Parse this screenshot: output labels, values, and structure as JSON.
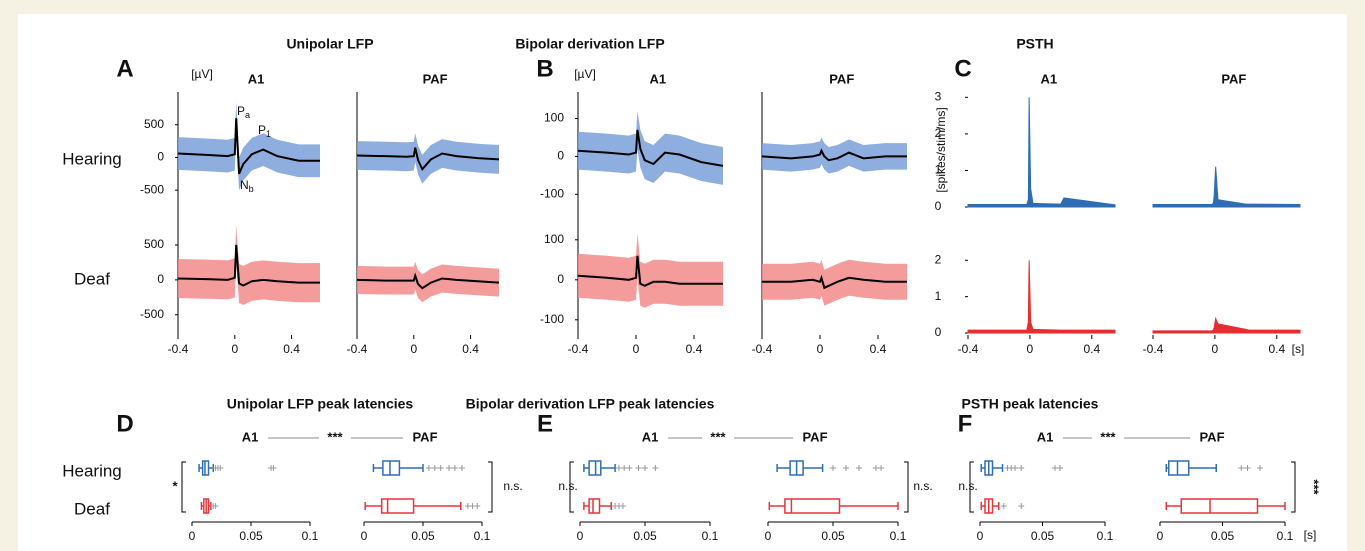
{
  "row_labels": [
    "Hearing",
    "Deaf"
  ],
  "mean_color": "#000000",
  "box_colors": [
    "#2f6db5",
    "#e8343a"
  ],
  "outlier_color": "#9a9a9a",
  "top_panels": [
    {
      "letter": "A",
      "title": "Unipolar LFP",
      "unit": "[µV]",
      "type": "band",
      "columns": [
        "A1",
        "PAF"
      ],
      "xlim": [
        -0.4,
        0.6
      ],
      "xticks": [
        -0.4,
        0,
        0.4
      ],
      "x": [
        -0.4,
        -0.2,
        -0.05,
        0,
        0.01,
        0.03,
        0.06,
        0.12,
        0.2,
        0.3,
        0.45,
        0.6
      ],
      "annotations": [
        {
          "text": "P",
          "sub": "a"
        },
        {
          "text": "P",
          "sub": "1"
        },
        {
          "text": "N",
          "sub": "b"
        }
      ],
      "rows": [
        {
          "color": "#7ba0db",
          "ylim": [
            -650,
            1000
          ],
          "yticks": [
            500,
            0,
            -500
          ],
          "spread": [
            250,
            220
          ],
          "mean": [
            [
              60,
              40,
              20,
              50,
              600,
              -250,
              -100,
              50,
              120,
              20,
              -50,
              -50
            ],
            [
              30,
              20,
              10,
              20,
              150,
              -40,
              -180,
              -30,
              60,
              20,
              -10,
              -30
            ]
          ]
        },
        {
          "color": "#f28b8b",
          "ylim": [
            -790,
            930
          ],
          "yticks": [
            500,
            0,
            -500
          ],
          "spread": [
            280,
            200
          ],
          "mean": [
            [
              20,
              10,
              0,
              30,
              500,
              -50,
              -80,
              -20,
              0,
              -20,
              -40,
              -40
            ],
            [
              0,
              -10,
              -10,
              -10,
              60,
              -60,
              -120,
              -40,
              20,
              0,
              -20,
              -40
            ]
          ]
        }
      ]
    },
    {
      "letter": "B",
      "title": "Bipolar derivation LFP",
      "unit": "[µV]",
      "type": "band",
      "columns": [
        "A1",
        "PAF"
      ],
      "xlim": [
        -0.4,
        0.6
      ],
      "xticks": [
        -0.4,
        0,
        0.4
      ],
      "x": [
        -0.4,
        -0.2,
        -0.05,
        0,
        0.01,
        0.03,
        0.06,
        0.12,
        0.2,
        0.3,
        0.45,
        0.6
      ],
      "rows": [
        {
          "color": "#7ba0db",
          "ylim": [
            -115,
            170
          ],
          "yticks": [
            100,
            0,
            -100
          ],
          "spread": [
            50,
            35
          ],
          "mean": [
            [
              15,
              10,
              5,
              10,
              70,
              20,
              -10,
              -20,
              10,
              5,
              -15,
              -25
            ],
            [
              0,
              -5,
              0,
              5,
              15,
              0,
              -10,
              -5,
              10,
              -5,
              0,
              0
            ]
          ]
        },
        {
          "color": "#f28b8b",
          "ylim": [
            -138,
            162
          ],
          "yticks": [
            100,
            0,
            -100
          ],
          "spread": [
            55,
            45
          ],
          "mean": [
            [
              10,
              5,
              0,
              5,
              60,
              -10,
              -15,
              -5,
              -5,
              -10,
              -10,
              -10
            ],
            [
              -5,
              -5,
              0,
              -5,
              5,
              -20,
              -15,
              -5,
              5,
              0,
              -5,
              -5
            ]
          ]
        }
      ]
    },
    {
      "letter": "C",
      "title": "PSTH",
      "unit": "[spikes/stim/ms]",
      "x_unit": "[s]",
      "type": "area",
      "columns": [
        "A1",
        "PAF"
      ],
      "xlim": [
        -0.4,
        0.55
      ],
      "xticks": [
        -0.4,
        0,
        0.4
      ],
      "x": [
        -0.4,
        -0.02,
        -0.01,
        -0.005,
        0.005,
        0.02,
        0.2,
        0.22,
        0.55
      ],
      "rows": [
        {
          "color": "#2e6db4",
          "ylim": [
            0,
            3.2
          ],
          "yticks": [
            3,
            2,
            1,
            0
          ],
          "mean": [
            [
              0.07,
              0.07,
              0.2,
              3,
              0.5,
              0.1,
              0.08,
              0.25,
              0.06
            ],
            [
              0.07,
              0.07,
              0.1,
              0.3,
              1.1,
              0.2,
              0.08,
              0.08,
              0.07
            ]
          ]
        },
        {
          "color": "#e52e2e",
          "ylim": [
            0,
            2.2
          ],
          "yticks": [
            2,
            1,
            0
          ],
          "mean": [
            [
              0.08,
              0.08,
              0.3,
              2,
              0.3,
              0.1,
              0.08,
              0.08,
              0.08
            ],
            [
              0.06,
              0.06,
              0.08,
              0.15,
              0.4,
              0.25,
              0.1,
              0.08,
              0.08
            ]
          ]
        }
      ]
    }
  ],
  "box_panels": [
    {
      "letter": "D",
      "title": "Unipolar LFP peak latencies",
      "columns": [
        "A1",
        "PAF"
      ],
      "comparison": "***",
      "left_sig": "*",
      "right_sig": "n.s.",
      "xlim": [
        0,
        0.1
      ],
      "xticks": [
        0,
        0.05,
        0.1
      ],
      "groups": [
        [
          {
            "min": 0.006,
            "q1": 0.009,
            "median": 0.011,
            "q3": 0.014,
            "max": 0.018,
            "outliers": [
              0.02,
              0.022,
              0.024,
              0.067,
              0.069
            ]
          },
          {
            "min": 0.008,
            "q1": 0.01,
            "median": 0.012,
            "q3": 0.014,
            "max": 0.016,
            "outliers": [
              0.018,
              0.02
            ]
          }
        ],
        [
          {
            "min": 0.008,
            "q1": 0.016,
            "median": 0.022,
            "q3": 0.03,
            "max": 0.05,
            "outliers": [
              0.055,
              0.06,
              0.065,
              0.072,
              0.077,
              0.083
            ]
          },
          {
            "min": 0.001,
            "q1": 0.015,
            "median": 0.02,
            "q3": 0.042,
            "max": 0.082,
            "outliers": [
              0.088,
              0.092,
              0.096
            ]
          }
        ]
      ]
    },
    {
      "letter": "E",
      "title": "Bipolar derivation LFP peak latencies",
      "columns": [
        "A1",
        "PAF"
      ],
      "comparison": "***",
      "left_sig": "n.s.",
      "right_sig": "n.s.",
      "xlim": [
        0,
        0.1
      ],
      "xticks": [
        0,
        0.05,
        0.1
      ],
      "groups": [
        [
          {
            "min": 0.003,
            "q1": 0.007,
            "median": 0.012,
            "q3": 0.016,
            "max": 0.027,
            "outliers": [
              0.03,
              0.034,
              0.038,
              0.045,
              0.05,
              0.058
            ]
          },
          {
            "min": 0.003,
            "q1": 0.007,
            "median": 0.01,
            "q3": 0.015,
            "max": 0.024,
            "outliers": [
              0.027,
              0.03,
              0.033
            ]
          }
        ],
        [
          {
            "min": 0.007,
            "q1": 0.017,
            "median": 0.022,
            "q3": 0.027,
            "max": 0.042,
            "outliers": [
              0.05,
              0.06,
              0.07,
              0.083,
              0.087
            ]
          },
          {
            "min": 0.001,
            "q1": 0.013,
            "median": 0.018,
            "q3": 0.055,
            "max": 0.1,
            "outliers": []
          }
        ]
      ]
    },
    {
      "letter": "F",
      "title": "PSTH peak latencies",
      "columns": [
        "A1",
        "PAF"
      ],
      "comparison": "***",
      "left_sig": "n.s.",
      "right_sig": "***",
      "x_unit": "[s]",
      "xlim": [
        0,
        0.1
      ],
      "xticks": [
        0,
        0.05,
        0.1
      ],
      "groups": [
        [
          {
            "min": 0.001,
            "q1": 0.004,
            "median": 0.007,
            "q3": 0.01,
            "max": 0.018,
            "outliers": [
              0.022,
              0.025,
              0.028,
              0.033,
              0.06,
              0.064
            ]
          },
          {
            "min": 0.001,
            "q1": 0.004,
            "median": 0.007,
            "q3": 0.01,
            "max": 0.015,
            "outliers": [
              0.019,
              0.033
            ]
          }
        ],
        [
          {
            "min": 0.005,
            "q1": 0.007,
            "median": 0.014,
            "q3": 0.023,
            "max": 0.045,
            "outliers": [
              0.065,
              0.07,
              0.08
            ]
          },
          {
            "min": 0.005,
            "q1": 0.017,
            "median": 0.04,
            "q3": 0.078,
            "max": 0.1,
            "outliers": []
          }
        ]
      ]
    }
  ]
}
